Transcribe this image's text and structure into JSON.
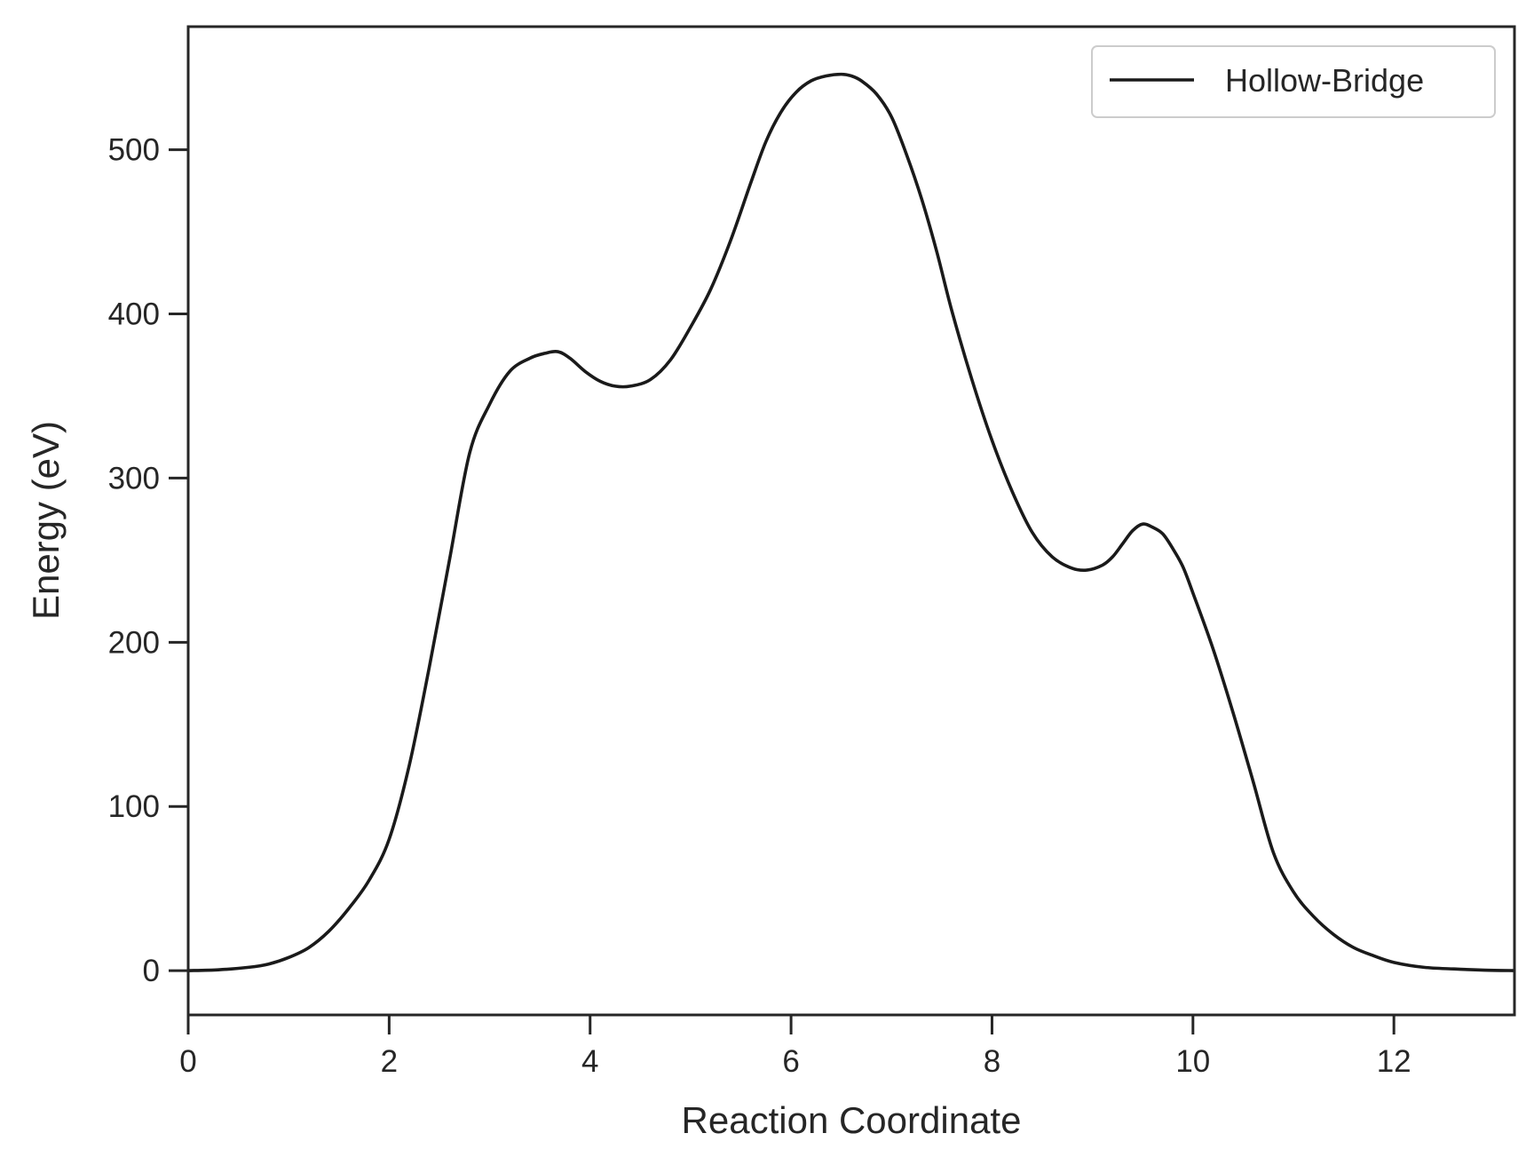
{
  "chart_data": {
    "type": "line",
    "title": "",
    "xlabel": "Reaction Coordinate",
    "ylabel": "Energy (eV)",
    "xlim": [
      0,
      13.2
    ],
    "ylim": [
      -27,
      575
    ],
    "xticks": [
      0,
      2,
      4,
      6,
      8,
      10,
      12
    ],
    "yticks": [
      0,
      100,
      200,
      300,
      400,
      500
    ],
    "grid": false,
    "legend_position": "top-right",
    "line_color": "#1a1a1a",
    "series": [
      {
        "name": "Hollow-Bridge",
        "x": [
          0,
          0.3,
          0.6,
          0.8,
          1.0,
          1.2,
          1.4,
          1.6,
          1.8,
          2.0,
          2.2,
          2.4,
          2.6,
          2.8,
          3.0,
          3.2,
          3.4,
          3.55,
          3.68,
          3.8,
          3.95,
          4.1,
          4.25,
          4.4,
          4.6,
          4.8,
          5.0,
          5.2,
          5.4,
          5.6,
          5.75,
          5.9,
          6.05,
          6.2,
          6.35,
          6.5,
          6.6,
          6.7,
          6.85,
          7.0,
          7.15,
          7.3,
          7.45,
          7.6,
          7.8,
          8.0,
          8.2,
          8.4,
          8.6,
          8.8,
          8.95,
          9.1,
          9.2,
          9.3,
          9.4,
          9.5,
          9.6,
          9.7,
          9.8,
          9.9,
          10.0,
          10.2,
          10.4,
          10.6,
          10.8,
          11.0,
          11.2,
          11.4,
          11.6,
          11.8,
          12.0,
          12.3,
          12.6,
          12.9,
          13.2
        ],
        "y": [
          0,
          0.5,
          2,
          4,
          8,
          14,
          24,
          38,
          55,
          80,
          125,
          185,
          250,
          315,
          345,
          365,
          373,
          376,
          377,
          373,
          365,
          359,
          356,
          356,
          360,
          372,
          392,
          415,
          445,
          480,
          505,
          523,
          535,
          542,
          545,
          546,
          545,
          542,
          534,
          520,
          497,
          470,
          438,
          402,
          360,
          323,
          292,
          267,
          252,
          245,
          244,
          247,
          252,
          260,
          268,
          272,
          270,
          266,
          257,
          246,
          230,
          196,
          157,
          115,
          72,
          48,
          33,
          22,
          14,
          9,
          5,
          2,
          1,
          0.3,
          0
        ]
      }
    ]
  }
}
